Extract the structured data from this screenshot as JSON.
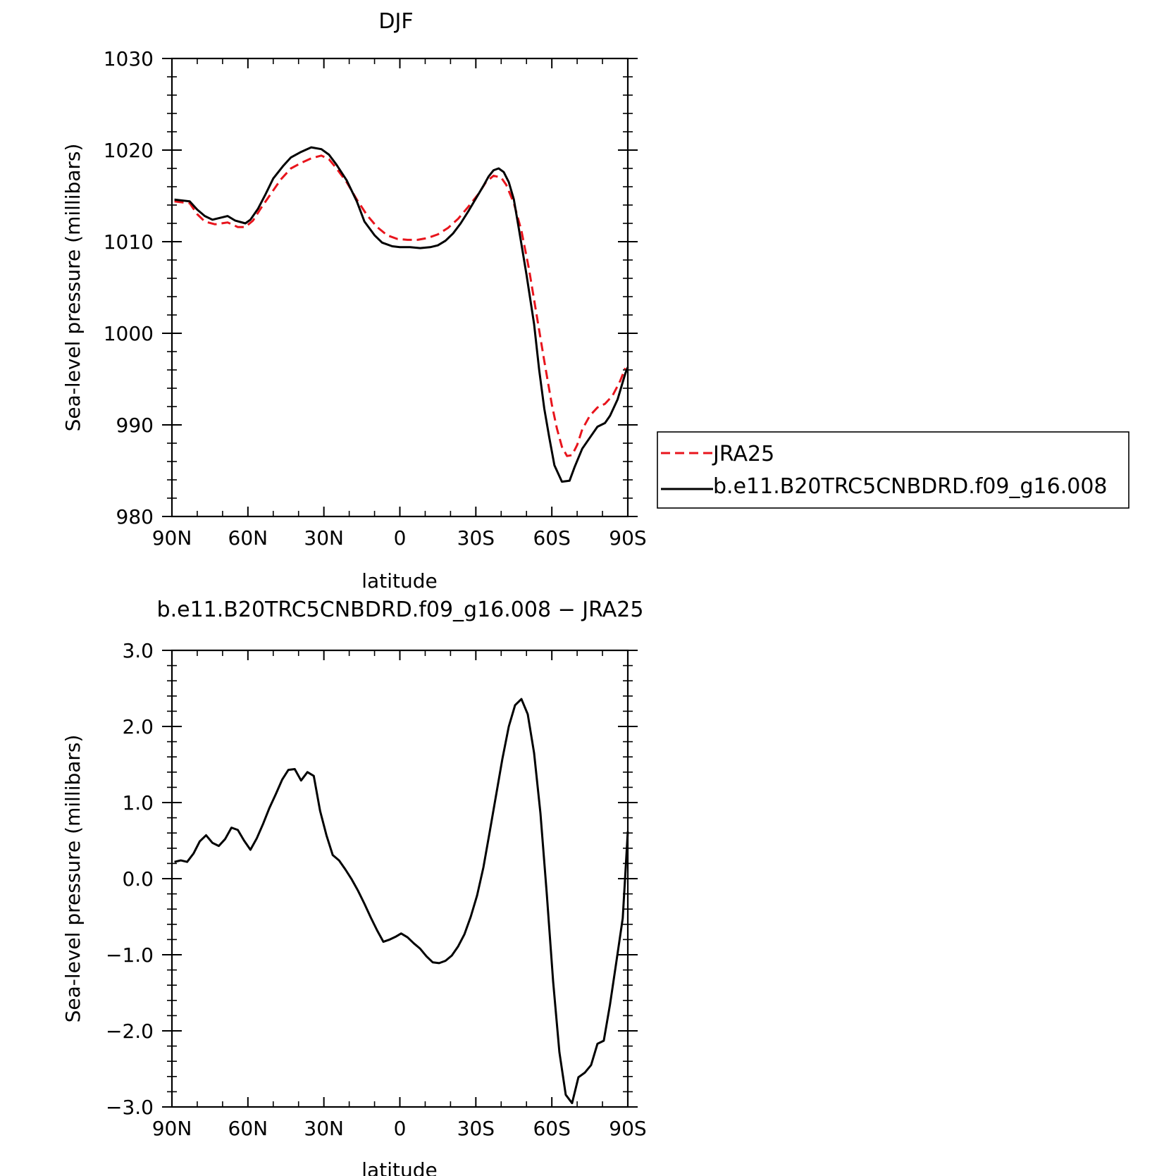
{
  "chart_data": [
    {
      "type": "line",
      "title": "DJF",
      "xlabel": "latitude",
      "ylabel": "Sea-level pressure (millibars)",
      "xlim": [
        90,
        -90
      ],
      "ylim": [
        980,
        1030
      ],
      "x_ticks": [
        90,
        60,
        30,
        0,
        -30,
        -60,
        -90
      ],
      "x_tick_labels": [
        "90N",
        "60N",
        "30N",
        "0",
        "30S",
        "60S",
        "90S"
      ],
      "y_ticks": [
        980,
        990,
        1000,
        1010,
        1020,
        1030
      ],
      "y_tick_labels": [
        "980",
        "990",
        "1000",
        "1010",
        "1020",
        "1030"
      ],
      "legend_position": "right",
      "series": [
        {
          "name": "JRA25",
          "color": "#e8141c",
          "dash": "dashed",
          "points": [
            [
              89,
              1014.4
            ],
            [
              83,
              1014.2
            ],
            [
              80,
              1013.0
            ],
            [
              77,
              1012.2
            ],
            [
              73,
              1011.9
            ],
            [
              68,
              1012.1
            ],
            [
              64,
              1011.6
            ],
            [
              61,
              1011.6
            ],
            [
              58,
              1012.3
            ],
            [
              55,
              1013.6
            ],
            [
              51,
              1015.2
            ],
            [
              47,
              1016.8
            ],
            [
              43,
              1018.0
            ],
            [
              39,
              1018.6
            ],
            [
              35,
              1019.1
            ],
            [
              31,
              1019.4
            ],
            [
              28,
              1019.0
            ],
            [
              25,
              1018.0
            ],
            [
              21,
              1016.5
            ],
            [
              17,
              1014.6
            ],
            [
              13,
              1012.9
            ],
            [
              9,
              1011.6
            ],
            [
              5,
              1010.7
            ],
            [
              1,
              1010.3
            ],
            [
              -3,
              1010.2
            ],
            [
              -7,
              1010.2
            ],
            [
              -11,
              1010.4
            ],
            [
              -15,
              1010.8
            ],
            [
              -19,
              1011.5
            ],
            [
              -23,
              1012.5
            ],
            [
              -27,
              1013.8
            ],
            [
              -31,
              1015.2
            ],
            [
              -34,
              1016.5
            ],
            [
              -37,
              1017.2
            ],
            [
              -40,
              1017.0
            ],
            [
              -42,
              1016.2
            ],
            [
              -45,
              1014.2
            ],
            [
              -48,
              1011.2
            ],
            [
              -51,
              1007.0
            ],
            [
              -54,
              1002.0
            ],
            [
              -57,
              997.0
            ],
            [
              -60,
              992.2
            ],
            [
              -62,
              989.6
            ],
            [
              -64,
              987.6
            ],
            [
              -66,
              986.6
            ],
            [
              -68,
              986.7
            ],
            [
              -70,
              987.8
            ],
            [
              -72,
              989.5
            ],
            [
              -75,
              991.0
            ],
            [
              -78,
              991.9
            ],
            [
              -81,
              992.3
            ],
            [
              -84,
              993.2
            ],
            [
              -87,
              994.8
            ],
            [
              -89,
              996.2
            ]
          ]
        },
        {
          "name": "b.e11.B20TRC5CNBDRD.f09_g16.008",
          "color": "#000000",
          "dash": "solid",
          "points": [
            [
              89,
              1014.6
            ],
            [
              83,
              1014.4
            ],
            [
              80,
              1013.5
            ],
            [
              77,
              1012.8
            ],
            [
              74,
              1012.4
            ],
            [
              68,
              1012.8
            ],
            [
              65,
              1012.3
            ],
            [
              61,
              1012.0
            ],
            [
              59,
              1012.4
            ],
            [
              56,
              1013.6
            ],
            [
              53,
              1015.2
            ],
            [
              50,
              1016.9
            ],
            [
              46,
              1018.3
            ],
            [
              43,
              1019.2
            ],
            [
              39,
              1019.8
            ],
            [
              35,
              1020.3
            ],
            [
              31,
              1020.1
            ],
            [
              28,
              1019.5
            ],
            [
              25,
              1018.4
            ],
            [
              21,
              1016.7
            ],
            [
              17,
              1014.4
            ],
            [
              14,
              1012.2
            ],
            [
              10,
              1010.7
            ],
            [
              7,
              1009.9
            ],
            [
              3,
              1009.5
            ],
            [
              0,
              1009.4
            ],
            [
              -4,
              1009.4
            ],
            [
              -8,
              1009.3
            ],
            [
              -12,
              1009.4
            ],
            [
              -15,
              1009.6
            ],
            [
              -18,
              1010.1
            ],
            [
              -21,
              1010.9
            ],
            [
              -24,
              1012.0
            ],
            [
              -27,
              1013.3
            ],
            [
              -30,
              1014.7
            ],
            [
              -33,
              1016.1
            ],
            [
              -35,
              1017.1
            ],
            [
              -37,
              1017.8
            ],
            [
              -39,
              1018.0
            ],
            [
              -41,
              1017.6
            ],
            [
              -43,
              1016.5
            ],
            [
              -45,
              1014.6
            ],
            [
              -47,
              1011.4
            ],
            [
              -50,
              1006.4
            ],
            [
              -53,
              1001.0
            ],
            [
              -55,
              996.0
            ],
            [
              -57,
              991.8
            ],
            [
              -59,
              988.6
            ],
            [
              -61,
              985.6
            ],
            [
              -64,
              983.8
            ],
            [
              -67,
              983.9
            ],
            [
              -69,
              985.4
            ],
            [
              -72,
              987.4
            ],
            [
              -75,
              988.6
            ],
            [
              -78,
              989.8
            ],
            [
              -81,
              990.2
            ],
            [
              -83,
              991.0
            ],
            [
              -86,
              992.8
            ],
            [
              -89,
              995.6
            ],
            [
              -90,
              996.3
            ]
          ]
        }
      ]
    },
    {
      "type": "line",
      "title": "b.e11.B20TRC5CNBDRD.f09_g16.008 − JRA25",
      "xlabel": "latitude",
      "ylabel": "Sea-level pressure (millibars)",
      "xlim": [
        90,
        -90
      ],
      "ylim": [
        -3.0,
        3.0
      ],
      "x_ticks": [
        90,
        60,
        30,
        0,
        -30,
        -60,
        -90
      ],
      "x_tick_labels": [
        "90N",
        "60N",
        "30N",
        "0",
        "30S",
        "60S",
        "90S"
      ],
      "y_ticks": [
        -3,
        -2,
        -1,
        0,
        1,
        2,
        3
      ],
      "y_tick_labels": [
        "−3.0",
        "−2.0",
        "−1.0",
        "0.0",
        "1.0",
        "2.0",
        "3.0"
      ],
      "series": [
        {
          "color": "#000000",
          "dash": "solid",
          "points": [
            [
              89,
              0.22
            ],
            [
              86.5,
              0.24
            ],
            [
              84,
              0.22
            ],
            [
              81.5,
              0.33
            ],
            [
              79,
              0.49
            ],
            [
              76.5,
              0.57
            ],
            [
              74,
              0.47
            ],
            [
              71.5,
              0.43
            ],
            [
              69,
              0.52
            ],
            [
              66.5,
              0.67
            ],
            [
              64,
              0.64
            ],
            [
              61.5,
              0.5
            ],
            [
              59,
              0.38
            ],
            [
              56.5,
              0.53
            ],
            [
              54,
              0.72
            ],
            [
              51.5,
              0.93
            ],
            [
              49,
              1.11
            ],
            [
              46.5,
              1.3
            ],
            [
              44,
              1.43
            ],
            [
              41.5,
              1.44
            ],
            [
              39,
              1.29
            ],
            [
              36.5,
              1.4
            ],
            [
              34,
              1.35
            ],
            [
              31.5,
              0.89
            ],
            [
              29,
              0.57
            ],
            [
              26.5,
              0.31
            ],
            [
              24,
              0.24
            ],
            [
              21.5,
              0.12
            ],
            [
              19,
              -0.01
            ],
            [
              16.5,
              -0.16
            ],
            [
              14,
              -0.33
            ],
            [
              11.5,
              -0.51
            ],
            [
              9,
              -0.68
            ],
            [
              6.5,
              -0.83
            ],
            [
              4,
              -0.8
            ],
            [
              1.5,
              -0.76
            ],
            [
              -0.5,
              -0.72
            ],
            [
              -3,
              -0.77
            ],
            [
              -5.5,
              -0.85
            ],
            [
              -8,
              -0.92
            ],
            [
              -10.5,
              -1.02
            ],
            [
              -13,
              -1.1
            ],
            [
              -15.5,
              -1.11
            ],
            [
              -18,
              -1.08
            ],
            [
              -20.5,
              -1.01
            ],
            [
              -23,
              -0.89
            ],
            [
              -25.5,
              -0.73
            ],
            [
              -28,
              -0.5
            ],
            [
              -30.5,
              -0.22
            ],
            [
              -33,
              0.15
            ],
            [
              -35.5,
              0.62
            ],
            [
              -38,
              1.1
            ],
            [
              -40.5,
              1.58
            ],
            [
              -43,
              2.0
            ],
            [
              -45.5,
              2.28
            ],
            [
              -48,
              2.36
            ],
            [
              -50.5,
              2.16
            ],
            [
              -53,
              1.65
            ],
            [
              -55.5,
              0.86
            ],
            [
              -58,
              -0.2
            ],
            [
              -60.5,
              -1.35
            ],
            [
              -63,
              -2.28
            ],
            [
              -65.5,
              -2.84
            ],
            [
              -68,
              -2.95
            ],
            [
              -70.5,
              -2.61
            ],
            [
              -73,
              -2.55
            ],
            [
              -75.5,
              -2.45
            ],
            [
              -78,
              -2.17
            ],
            [
              -80.5,
              -2.13
            ],
            [
              -83,
              -1.65
            ],
            [
              -85.5,
              -1.09
            ],
            [
              -88,
              -0.52
            ],
            [
              -90,
              0.62
            ]
          ]
        }
      ]
    }
  ]
}
